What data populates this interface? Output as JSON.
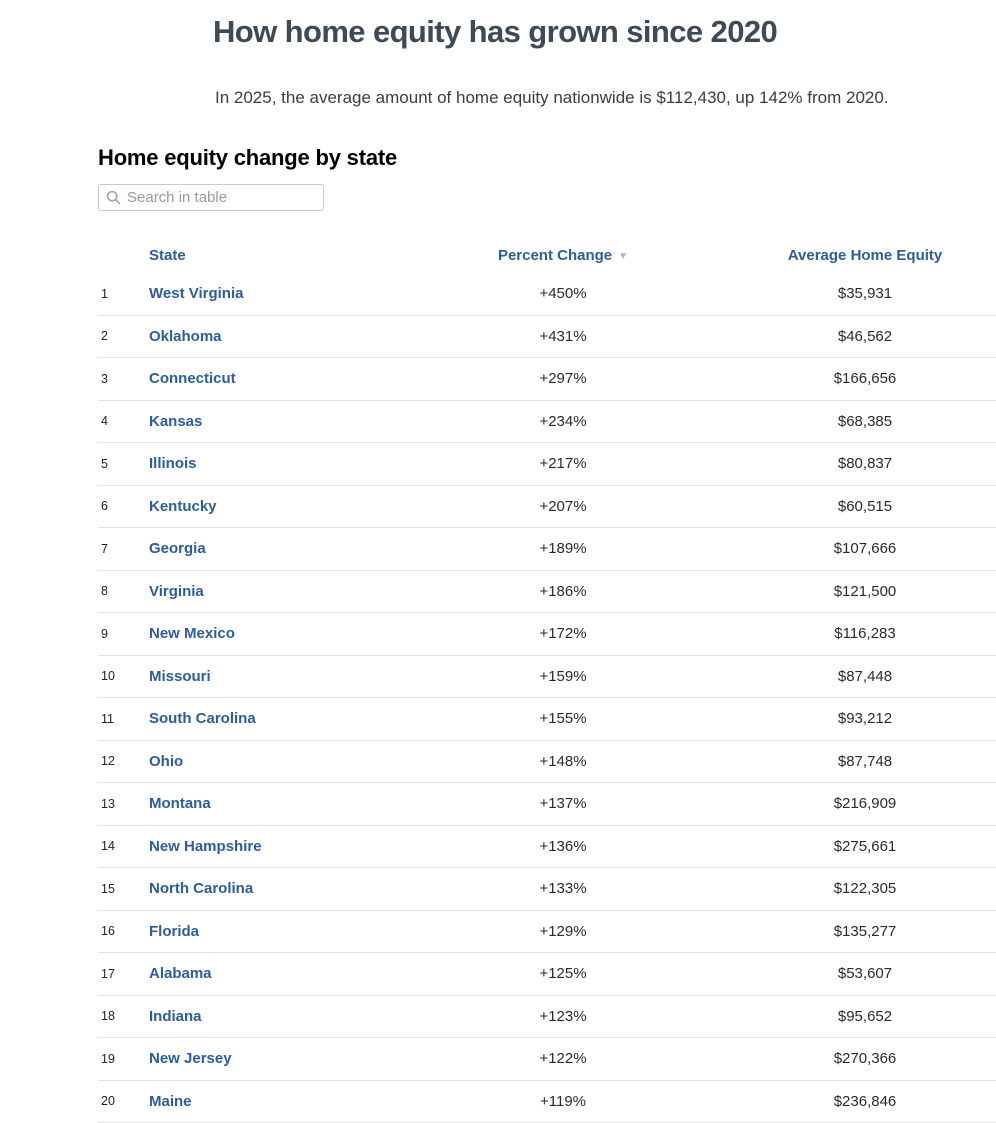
{
  "article": {
    "title": "How home equity has grown since 2020",
    "subtitle": "In 2025, the average amount of home equity nationwide is $112,430, up 142% from 2020."
  },
  "section": {
    "heading": "Home equity change by state",
    "search_placeholder": "Search in table",
    "sort_icon": "▼"
  },
  "colors": {
    "title_text": "#3e4a55",
    "link_blue": "#2d5d9e",
    "body_text": "#2b2b2b",
    "divider": "#e3e3e3",
    "sort_icon_gray": "#b4b4bc"
  },
  "chart_data": {
    "type": "table",
    "title": "Home equity change by state",
    "columns": [
      "State",
      "Percent Change",
      "Average Home Equity"
    ],
    "sorted_by": "Percent Change",
    "sort_direction": "descending",
    "rows": [
      {
        "rank": "1",
        "state": "West Virginia",
        "percent_change": "+450%",
        "average_home_equity": "$35,931"
      },
      {
        "rank": "2",
        "state": "Oklahoma",
        "percent_change": "+431%",
        "average_home_equity": "$46,562"
      },
      {
        "rank": "3",
        "state": "Connecticut",
        "percent_change": "+297%",
        "average_home_equity": "$166,656"
      },
      {
        "rank": "4",
        "state": "Kansas",
        "percent_change": "+234%",
        "average_home_equity": "$68,385"
      },
      {
        "rank": "5",
        "state": "Illinois",
        "percent_change": "+217%",
        "average_home_equity": "$80,837"
      },
      {
        "rank": "6",
        "state": "Kentucky",
        "percent_change": "+207%",
        "average_home_equity": "$60,515"
      },
      {
        "rank": "7",
        "state": "Georgia",
        "percent_change": "+189%",
        "average_home_equity": "$107,666"
      },
      {
        "rank": "8",
        "state": "Virginia",
        "percent_change": "+186%",
        "average_home_equity": "$121,500"
      },
      {
        "rank": "9",
        "state": "New Mexico",
        "percent_change": "+172%",
        "average_home_equity": "$116,283"
      },
      {
        "rank": "10",
        "state": "Missouri",
        "percent_change": "+159%",
        "average_home_equity": "$87,448"
      },
      {
        "rank": "11",
        "state": "South Carolina",
        "percent_change": "+155%",
        "average_home_equity": "$93,212"
      },
      {
        "rank": "12",
        "state": "Ohio",
        "percent_change": "+148%",
        "average_home_equity": "$87,748"
      },
      {
        "rank": "13",
        "state": "Montana",
        "percent_change": "+137%",
        "average_home_equity": "$216,909"
      },
      {
        "rank": "14",
        "state": "New Hampshire",
        "percent_change": "+136%",
        "average_home_equity": "$275,661"
      },
      {
        "rank": "15",
        "state": "North Carolina",
        "percent_change": "+133%",
        "average_home_equity": "$122,305"
      },
      {
        "rank": "16",
        "state": "Florida",
        "percent_change": "+129%",
        "average_home_equity": "$135,277"
      },
      {
        "rank": "17",
        "state": "Alabama",
        "percent_change": "+125%",
        "average_home_equity": "$53,607"
      },
      {
        "rank": "18",
        "state": "Indiana",
        "percent_change": "+123%",
        "average_home_equity": "$95,652"
      },
      {
        "rank": "19",
        "state": "New Jersey",
        "percent_change": "+122%",
        "average_home_equity": "$270,366"
      },
      {
        "rank": "20",
        "state": "Maine",
        "percent_change": "+119%",
        "average_home_equity": "$236,846"
      }
    ]
  }
}
